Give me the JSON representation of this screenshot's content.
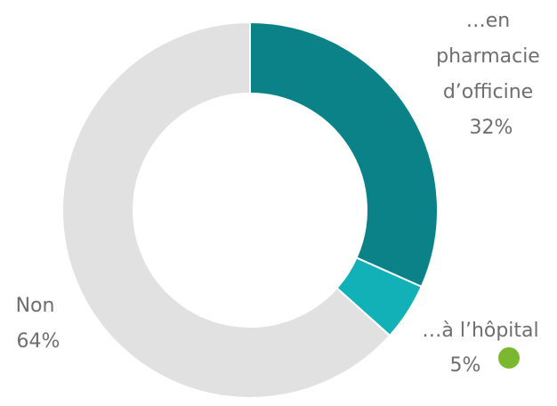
{
  "chart_data": {
    "type": "pie",
    "subtype": "donut",
    "title": "",
    "slices": [
      {
        "label_lines": [
          "…en",
          "pharmacie",
          "d’officine"
        ],
        "value": 32,
        "value_label": "32%",
        "color": "#0a8287"
      },
      {
        "label_lines": [
          "…à l’hôpital"
        ],
        "value": 5,
        "value_label": "5%",
        "color": "#12b1b8"
      },
      {
        "label_lines": [
          "Non"
        ],
        "value": 64,
        "value_label": "64%",
        "color": "#e2e1e1"
      }
    ],
    "marker_color": "#7cb82f",
    "start_angle_deg": 0,
    "direction": "clockwise"
  }
}
